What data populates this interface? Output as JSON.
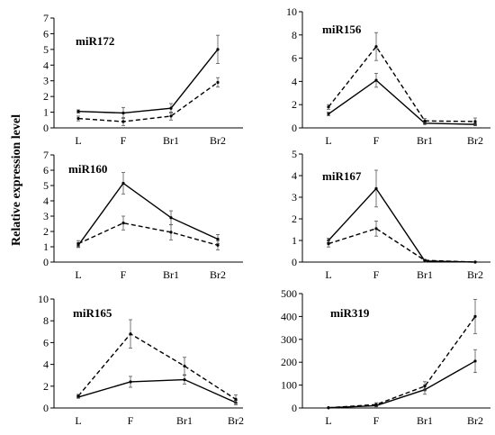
{
  "ylabel": "Relative expression level",
  "chart_data": [
    {
      "type": "line",
      "title": "miR172",
      "categories": [
        "L",
        "F",
        "Br1",
        "Br2"
      ],
      "ylim": [
        0,
        7
      ],
      "yticks": [
        0,
        1,
        2,
        3,
        4,
        5,
        6,
        7
      ],
      "series": [
        {
          "style": "solid",
          "values": [
            1.05,
            0.95,
            1.25,
            5.0
          ],
          "errors": [
            0.1,
            0.35,
            0.3,
            0.9
          ]
        },
        {
          "style": "dashed",
          "values": [
            0.6,
            0.4,
            0.75,
            2.9
          ],
          "errors": [
            0.15,
            0.25,
            0.25,
            0.3
          ]
        }
      ]
    },
    {
      "type": "line",
      "title": "miR156",
      "categories": [
        "L",
        "F",
        "Br1",
        "Br2"
      ],
      "ylim": [
        0,
        10
      ],
      "yticks": [
        0,
        2,
        4,
        6,
        8,
        10
      ],
      "series": [
        {
          "style": "solid",
          "values": [
            1.2,
            4.1,
            0.4,
            0.3
          ],
          "errors": [
            0.15,
            0.6,
            0.1,
            0.1
          ]
        },
        {
          "style": "dashed",
          "values": [
            1.8,
            7.0,
            0.6,
            0.55
          ],
          "errors": [
            0.2,
            1.2,
            0.2,
            0.3
          ]
        }
      ]
    },
    {
      "type": "line",
      "title": "miR160",
      "categories": [
        "L",
        "F",
        "Br1",
        "Br2"
      ],
      "ylim": [
        0,
        7
      ],
      "yticks": [
        0,
        1,
        2,
        3,
        4,
        5,
        6,
        7
      ],
      "series": [
        {
          "style": "solid",
          "values": [
            1.1,
            5.15,
            2.9,
            1.5
          ],
          "errors": [
            0.15,
            0.7,
            0.45,
            0.3
          ]
        },
        {
          "style": "dashed",
          "values": [
            1.2,
            2.55,
            1.95,
            1.1
          ],
          "errors": [
            0.2,
            0.45,
            0.5,
            0.3
          ]
        }
      ]
    },
    {
      "type": "line",
      "title": "miR167",
      "categories": [
        "L",
        "F",
        "Br1",
        "Br2"
      ],
      "ylim": [
        0,
        5
      ],
      "yticks": [
        0,
        1,
        2,
        3,
        4,
        5
      ],
      "series": [
        {
          "style": "solid",
          "values": [
            1.0,
            3.4,
            0.05,
            0.0
          ],
          "errors": [
            0.1,
            0.85,
            0.05,
            0.02
          ]
        },
        {
          "style": "dashed",
          "values": [
            0.85,
            1.55,
            0.08,
            0.0
          ],
          "errors": [
            0.15,
            0.35,
            0.05,
            0.02
          ]
        }
      ]
    },
    {
      "type": "line",
      "title": "miR165",
      "categories": [
        "L",
        "F",
        "Br1",
        "Br2"
      ],
      "ylim": [
        0,
        10
      ],
      "yticks": [
        0,
        2,
        4,
        6,
        8,
        10
      ],
      "series": [
        {
          "style": "solid",
          "values": [
            1.0,
            2.4,
            2.6,
            0.5
          ],
          "errors": [
            0.1,
            0.5,
            0.4,
            0.2
          ]
        },
        {
          "style": "dashed",
          "values": [
            1.1,
            6.8,
            3.85,
            0.8
          ],
          "errors": [
            0.15,
            1.3,
            0.8,
            0.4
          ]
        }
      ]
    },
    {
      "type": "line",
      "title": "miR319",
      "categories": [
        "L",
        "F",
        "Br1",
        "Br2"
      ],
      "ylim": [
        0,
        500
      ],
      "yticks": [
        0,
        100,
        200,
        300,
        400,
        500
      ],
      "series": [
        {
          "style": "solid",
          "values": [
            1,
            10,
            80,
            205
          ],
          "errors": [
            1,
            5,
            20,
            50
          ]
        },
        {
          "style": "dashed",
          "values": [
            1,
            15,
            95,
            400
          ],
          "errors": [
            1,
            8,
            20,
            75
          ]
        }
      ]
    }
  ]
}
